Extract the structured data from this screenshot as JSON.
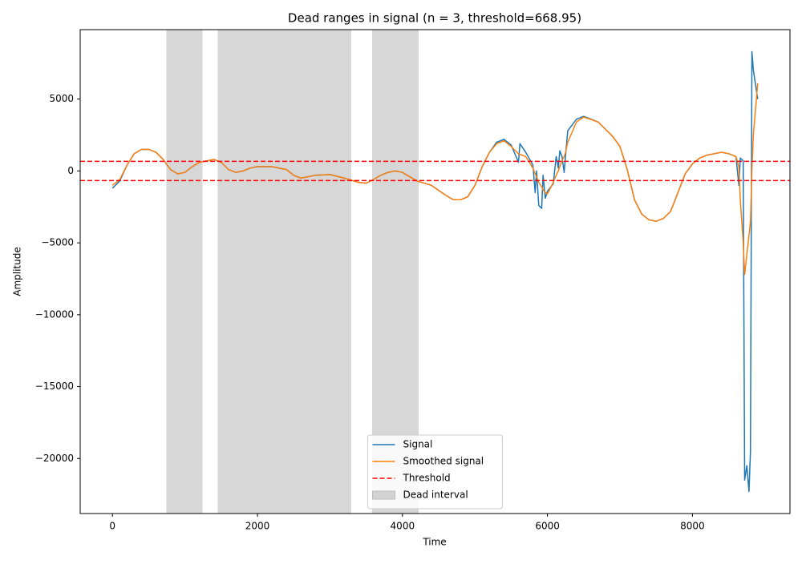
{
  "chart_data": {
    "type": "line",
    "title": "Dead ranges in signal (n = 3, threshold=668.95)",
    "x_label": "Time",
    "y_label": "Amplitude",
    "x": [
      0,
      100,
      200,
      300,
      400,
      500,
      600,
      700,
      800,
      900,
      1000,
      1100,
      1200,
      1300,
      1400,
      1500,
      1600,
      1700,
      1800,
      1900,
      2000,
      2200,
      2400,
      2500,
      2600,
      2700,
      2800,
      3000,
      3200,
      3400,
      3500,
      3600,
      3700,
      3800,
      3900,
      4000,
      4100,
      4200,
      4400,
      4600,
      4700,
      4800,
      4900,
      5000,
      5100,
      5200,
      5300,
      5400,
      5500,
      5600,
      5620,
      5700,
      5800,
      5830,
      5850,
      5880,
      5920,
      5940,
      5970,
      6000,
      6080,
      6120,
      6150,
      6170,
      6200,
      6230,
      6250,
      6280,
      6400,
      6500,
      6700,
      6900,
      7000,
      7100,
      7200,
      7300,
      7400,
      7500,
      7600,
      7700,
      7800,
      7900,
      8000,
      8100,
      8200,
      8400,
      8500,
      8600,
      8640,
      8660,
      8700,
      8720,
      8750,
      8780,
      8800,
      8820,
      8840,
      8900
    ],
    "series": [
      {
        "name": "Signal",
        "color": "#1f77b4",
        "values": [
          -1200,
          -700,
          400,
          1200,
          1500,
          1500,
          1300,
          800,
          100,
          -200,
          -100,
          300,
          600,
          700,
          800,
          600,
          100,
          -100,
          0,
          200,
          300,
          300,
          100,
          -300,
          -500,
          -400,
          -300,
          -250,
          -500,
          -800,
          -850,
          -600,
          -300,
          -100,
          0,
          -100,
          -400,
          -700,
          -1000,
          -1700,
          -2000,
          -2000,
          -1800,
          -1000,
          300,
          1300,
          2000,
          2200,
          1800,
          600,
          1900,
          1300,
          400,
          -1500,
          0,
          -2400,
          -2600,
          -300,
          -1900,
          -1400,
          -900,
          1000,
          200,
          1400,
          1000,
          -100,
          1100,
          2800,
          3600,
          3800,
          3400,
          2400,
          1700,
          100,
          -2000,
          -3000,
          -3400,
          -3500,
          -3300,
          -2800,
          -1500,
          -200,
          500,
          900,
          1100,
          1300,
          1200,
          1000,
          -1000,
          900,
          700,
          -21500,
          -20500,
          -22300,
          -19500,
          8300,
          7000,
          5000
        ]
      },
      {
        "name": "Smoothed signal",
        "color": "#ff7f0e",
        "values": [
          -1000,
          -600,
          400,
          1200,
          1500,
          1500,
          1300,
          800,
          100,
          -200,
          -100,
          300,
          600,
          700,
          800,
          600,
          100,
          -100,
          0,
          200,
          300,
          300,
          100,
          -300,
          -500,
          -400,
          -300,
          -250,
          -500,
          -800,
          -850,
          -600,
          -300,
          -100,
          0,
          -100,
          -400,
          -700,
          -1000,
          -1700,
          -2000,
          -2000,
          -1800,
          -1000,
          300,
          1300,
          1900,
          2100,
          1700,
          1200,
          1150,
          1000,
          200,
          -200,
          -400,
          -800,
          -1100,
          -1300,
          -1500,
          -1600,
          -800,
          -300,
          0,
          300,
          700,
          1000,
          1300,
          2000,
          3400,
          3750,
          3400,
          2400,
          1700,
          100,
          -2000,
          -3000,
          -3400,
          -3500,
          -3300,
          -2800,
          -1500,
          -200,
          500,
          900,
          1100,
          1300,
          1200,
          1000,
          300,
          -2000,
          -5000,
          -7200,
          -5800,
          -4500,
          -3500,
          0,
          2500,
          6100
        ]
      }
    ],
    "threshold": {
      "name": "Threshold",
      "value": 668.95,
      "color": "#ff0000"
    },
    "dead_intervals": {
      "name": "Dead interval",
      "color": "#d3d3d3",
      "ranges": [
        [
          743,
          1242
        ],
        [
          1452,
          3293
        ],
        [
          3581,
          4224
        ]
      ]
    },
    "xlim": [
      -445,
      9345
    ],
    "ylim": [
      -23830,
      9830
    ],
    "xticks": [
      0,
      2000,
      4000,
      6000,
      8000
    ],
    "yticks": [
      {
        "value": -20000,
        "label": "−20000"
      },
      {
        "value": -15000,
        "label": "−15000"
      },
      {
        "value": -10000,
        "label": "−10000"
      },
      {
        "value": -5000,
        "label": "−5000"
      },
      0,
      5000
    ],
    "legend": "lower center"
  }
}
